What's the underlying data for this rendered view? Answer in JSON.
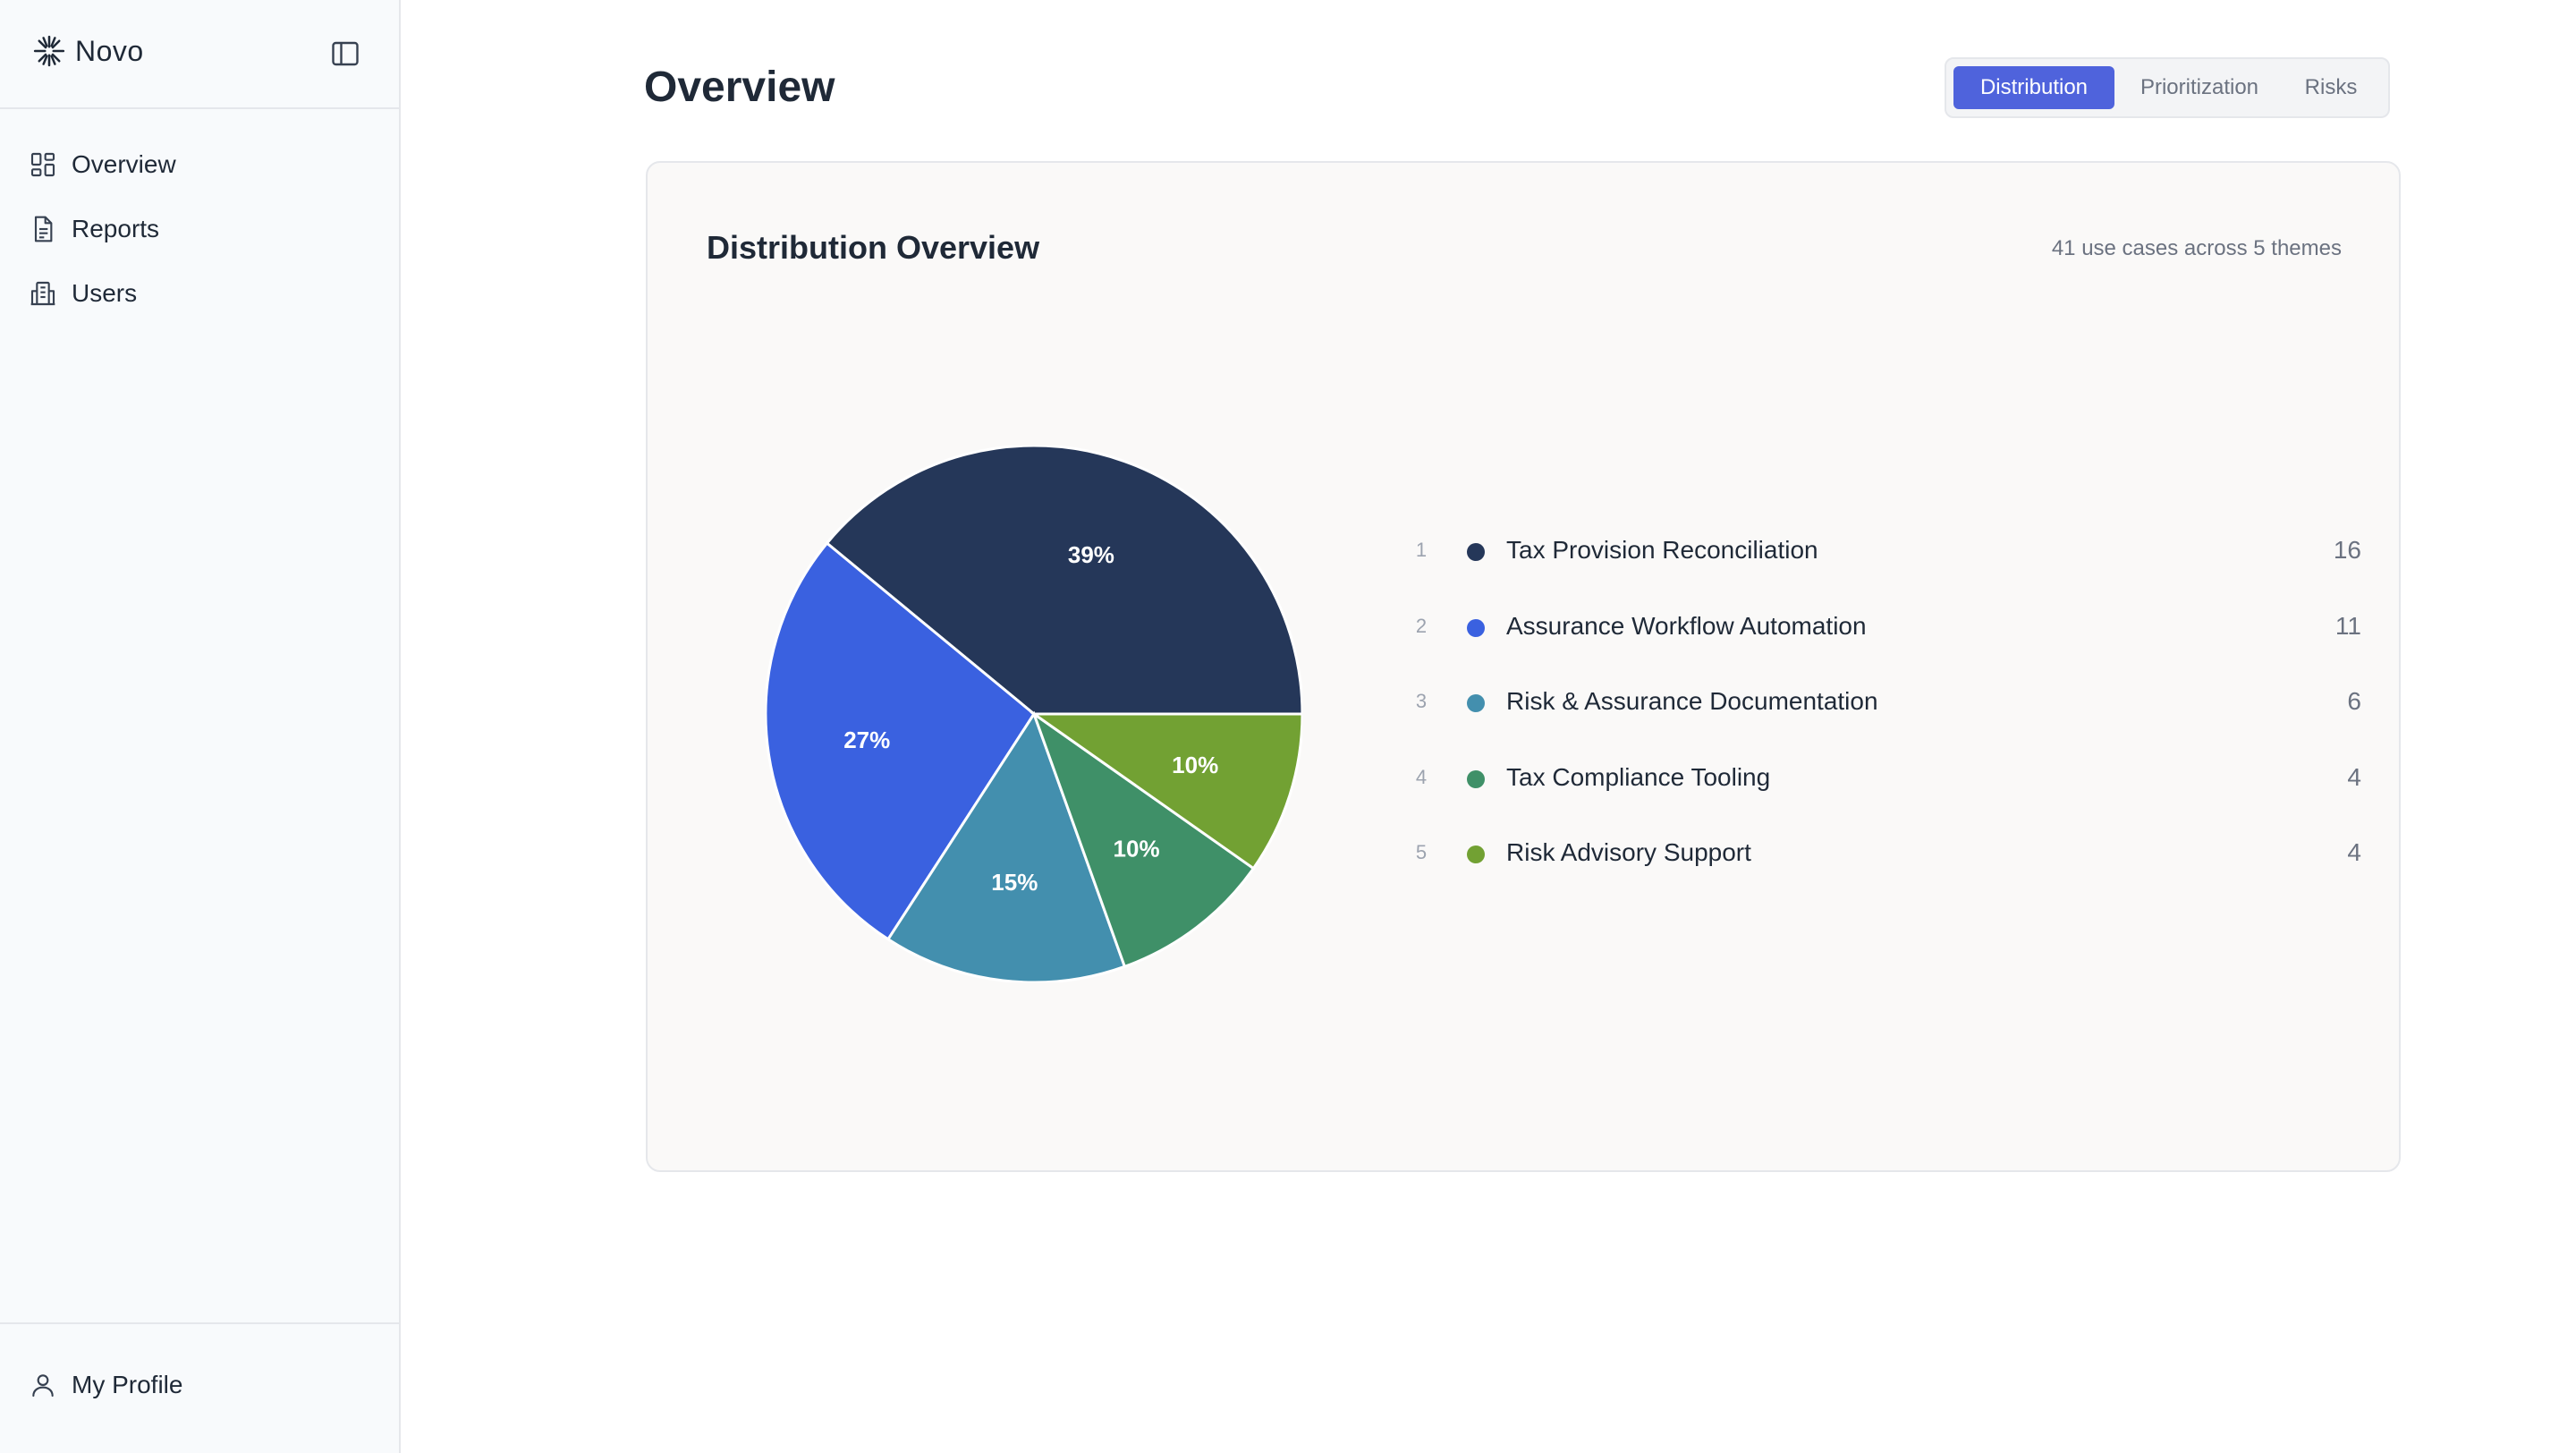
{
  "app": {
    "name": "Novo",
    "logo_icon": "sparkle-logo-icon",
    "collapse_icon": "sidebar-toggle-icon"
  },
  "sidebar": {
    "items": [
      {
        "label": "Overview",
        "icon": "dashboard-grid-icon"
      },
      {
        "label": "Reports",
        "icon": "document-icon"
      },
      {
        "label": "Users",
        "icon": "building-icon"
      }
    ],
    "profile": {
      "label": "My Profile",
      "icon": "user-icon"
    }
  },
  "header": {
    "title": "Overview",
    "tabs": [
      {
        "label": "Distribution",
        "active": true
      },
      {
        "label": "Prioritization",
        "active": false
      },
      {
        "label": "Risks",
        "active": false
      }
    ]
  },
  "card": {
    "title": "Distribution Overview",
    "subtitle": "41 use cases across 5 themes"
  },
  "chart_data": {
    "type": "pie",
    "title": "Distribution Overview",
    "total": 41,
    "slices": [
      {
        "rank": "1",
        "label": "Tax Provision Reconciliation",
        "value": 16,
        "percent_label": "39%",
        "color": "#253759"
      },
      {
        "rank": "2",
        "label": "Assurance Workflow Automation",
        "value": 11,
        "percent_label": "27%",
        "color": "#3a61e0"
      },
      {
        "rank": "3",
        "label": "Risk & Assurance Documentation",
        "value": 6,
        "percent_label": "15%",
        "color": "#438fae"
      },
      {
        "rank": "4",
        "label": "Tax Compliance Tooling",
        "value": 4,
        "percent_label": "10%",
        "color": "#3f9068"
      },
      {
        "rank": "5",
        "label": "Risk Advisory Support",
        "value": 4,
        "percent_label": "10%",
        "color": "#72a133"
      }
    ],
    "legend_position": "right"
  }
}
